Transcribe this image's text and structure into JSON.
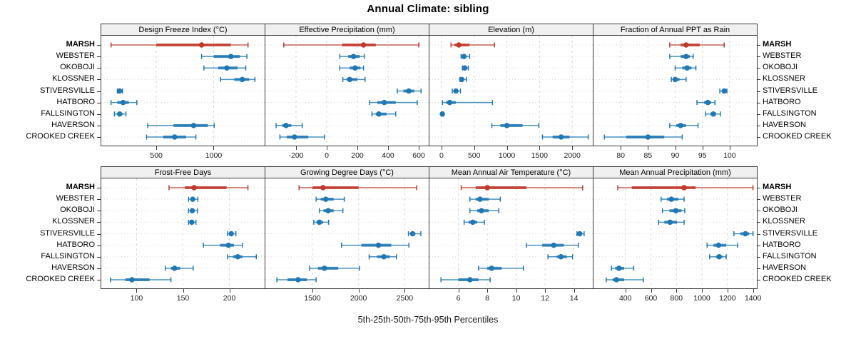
{
  "title": "Annual Climate: sibling",
  "caption": "5th-25th-50th-75th-95th Percentiles",
  "colors": {
    "highlight": "#c0392b",
    "normal": "#1f77b4",
    "strip_bg": "#f0f0f0",
    "panel_border": "#3a3a3a",
    "grid": "#d9d9d9",
    "tick": "#3a3a3a"
  },
  "chart_data": {
    "type": "dotplot-quantile-trellis",
    "quantiles": [
      "5th",
      "25th",
      "50th",
      "75th",
      "95th"
    ],
    "highlight_site": "MARSH",
    "legend_position": "none",
    "grid": true,
    "sites": [
      "MARSH",
      "WEBSTER",
      "OKOBOJI",
      "KLOSSNER",
      "STIVERSVILLE",
      "HATBORO",
      "FALLSINGTON",
      "HAVERSON",
      "CROOKED CREEK"
    ],
    "panels": [
      {
        "title": "Design Freeze Index (°C)",
        "xlim": [
          20,
          1445
        ],
        "ticks": [
          500,
          1000
        ],
        "q": [
          [
            105,
            500,
            895,
            1150,
            1300
          ],
          [
            895,
            1000,
            1150,
            1230,
            1290
          ],
          [
            915,
            1040,
            1115,
            1210,
            1280
          ],
          [
            1060,
            1180,
            1250,
            1310,
            1360
          ],
          [
            160,
            170,
            180,
            190,
            205
          ],
          [
            105,
            160,
            210,
            260,
            330
          ],
          [
            135,
            160,
            180,
            205,
            235
          ],
          [
            425,
            650,
            825,
            950,
            1005
          ],
          [
            415,
            560,
            660,
            760,
            845
          ]
        ]
      },
      {
        "title": "Effective Precipitation (mm)",
        "xlim": [
          -400,
          665
        ],
        "ticks": [
          -200,
          0,
          200,
          400,
          600
        ],
        "q": [
          [
            -280,
            100,
            240,
            320,
            600
          ],
          [
            85,
            140,
            175,
            215,
            245
          ],
          [
            85,
            150,
            185,
            220,
            240
          ],
          [
            105,
            130,
            150,
            200,
            250
          ],
          [
            460,
            500,
            535,
            570,
            615
          ],
          [
            280,
            330,
            375,
            450,
            590
          ],
          [
            295,
            320,
            340,
            390,
            450
          ],
          [
            -330,
            -290,
            -265,
            -230,
            -160
          ],
          [
            -305,
            -260,
            -210,
            -120,
            -15
          ]
        ]
      },
      {
        "title": "Elevation (m)",
        "xlim": [
          -185,
          2315
        ],
        "ticks": [
          0,
          500,
          1000,
          1500,
          2000
        ],
        "q": [
          [
            145,
            200,
            265,
            430,
            810
          ],
          [
            300,
            330,
            345,
            375,
            430
          ],
          [
            320,
            340,
            355,
            380,
            410
          ],
          [
            280,
            300,
            310,
            340,
            380
          ],
          [
            165,
            200,
            220,
            245,
            290
          ],
          [
            15,
            70,
            125,
            220,
            780
          ],
          [
            2,
            6,
            12,
            20,
            35
          ],
          [
            770,
            900,
            1000,
            1240,
            1490
          ],
          [
            1545,
            1700,
            1830,
            1960,
            2245
          ]
        ]
      },
      {
        "title": "Fraction of Annual PPT as Rain",
        "xlim": [
          75,
          105
        ],
        "ticks": [
          80,
          85,
          90,
          95,
          100
        ],
        "q": [
          [
            89,
            91,
            92,
            94.5,
            99
          ],
          [
            89,
            91,
            92,
            92.7,
            93.3
          ],
          [
            90,
            91.3,
            92.2,
            93,
            93.8
          ],
          [
            89.3,
            89.7,
            90,
            90.8,
            92
          ],
          [
            98.2,
            98.7,
            99,
            99.2,
            99.5
          ],
          [
            94,
            95.3,
            96,
            96.6,
            97.3
          ],
          [
            95.6,
            96.5,
            97,
            97.5,
            98.3
          ],
          [
            89,
            90.2,
            91,
            92,
            94.2
          ],
          [
            77,
            81,
            85,
            88,
            91.3
          ]
        ]
      },
      {
        "title": "Frost-Free Days",
        "xlim": [
          62,
          238
        ],
        "ticks": [
          100,
          150,
          200
        ],
        "q": [
          [
            135,
            152,
            162,
            197,
            220
          ],
          [
            156,
            158.5,
            160.5,
            163,
            166
          ],
          [
            156,
            158,
            160,
            162.5,
            165.5
          ],
          [
            156,
            158,
            159.5,
            161,
            164
          ],
          [
            198,
            200,
            202,
            204,
            207
          ],
          [
            172,
            190,
            199,
            205,
            214
          ],
          [
            198,
            204,
            209,
            214,
            229
          ],
          [
            131,
            137,
            141,
            147,
            161
          ],
          [
            72,
            88,
            95,
            114,
            137
          ]
        ]
      },
      {
        "title": "Growing Degree Days (°C)",
        "xlim": [
          990,
          2760
        ],
        "ticks": [
          1500,
          2000,
          2500
        ],
        "q": [
          [
            1355,
            1500,
            1615,
            2000,
            2630
          ],
          [
            1540,
            1590,
            1645,
            1730,
            1845
          ],
          [
            1575,
            1620,
            1670,
            1730,
            1830
          ],
          [
            1515,
            1545,
            1575,
            1615,
            1675
          ],
          [
            2540,
            2565,
            2585,
            2615,
            2675
          ],
          [
            1815,
            2030,
            2215,
            2355,
            2545
          ],
          [
            2115,
            2200,
            2275,
            2340,
            2410
          ],
          [
            1470,
            1560,
            1630,
            1780,
            2010
          ],
          [
            1115,
            1230,
            1345,
            1440,
            1540
          ]
        ]
      },
      {
        "title": "Mean Annual Air Temperature (°C)",
        "xlim": [
          4,
          15.3
        ],
        "ticks": [
          6,
          8,
          10,
          12,
          14
        ],
        "q": [
          [
            6.2,
            7.2,
            8.0,
            10.7,
            14.6
          ],
          [
            6.8,
            7.2,
            7.5,
            8.1,
            8.9
          ],
          [
            6.8,
            7.3,
            7.6,
            8.1,
            8.8
          ],
          [
            6.4,
            6.7,
            7.0,
            7.3,
            7.8
          ],
          [
            14.2,
            14.3,
            14.4,
            14.55,
            14.7
          ],
          [
            10.7,
            11.8,
            12.6,
            13.3,
            14.3
          ],
          [
            12.2,
            12.8,
            13.1,
            13.5,
            13.9
          ],
          [
            7.4,
            8.0,
            8.3,
            9.0,
            10.5
          ],
          [
            4.8,
            6.0,
            6.8,
            7.4,
            8.2
          ]
        ]
      },
      {
        "title": "Mean Annual Precipitation (mm)",
        "xlim": [
          150,
          1430
        ],
        "ticks": [
          400,
          600,
          800,
          1000,
          1200,
          1400
        ],
        "q": [
          [
            340,
            450,
            860,
            950,
            1400
          ],
          [
            680,
            725,
            760,
            815,
            860
          ],
          [
            690,
            745,
            795,
            840,
            865
          ],
          [
            660,
            705,
            750,
            805,
            860
          ],
          [
            1250,
            1300,
            1340,
            1370,
            1400
          ],
          [
            1040,
            1090,
            1130,
            1190,
            1280
          ],
          [
            1060,
            1110,
            1135,
            1160,
            1190
          ],
          [
            290,
            320,
            350,
            390,
            465
          ],
          [
            250,
            300,
            330,
            390,
            540
          ]
        ]
      }
    ]
  }
}
